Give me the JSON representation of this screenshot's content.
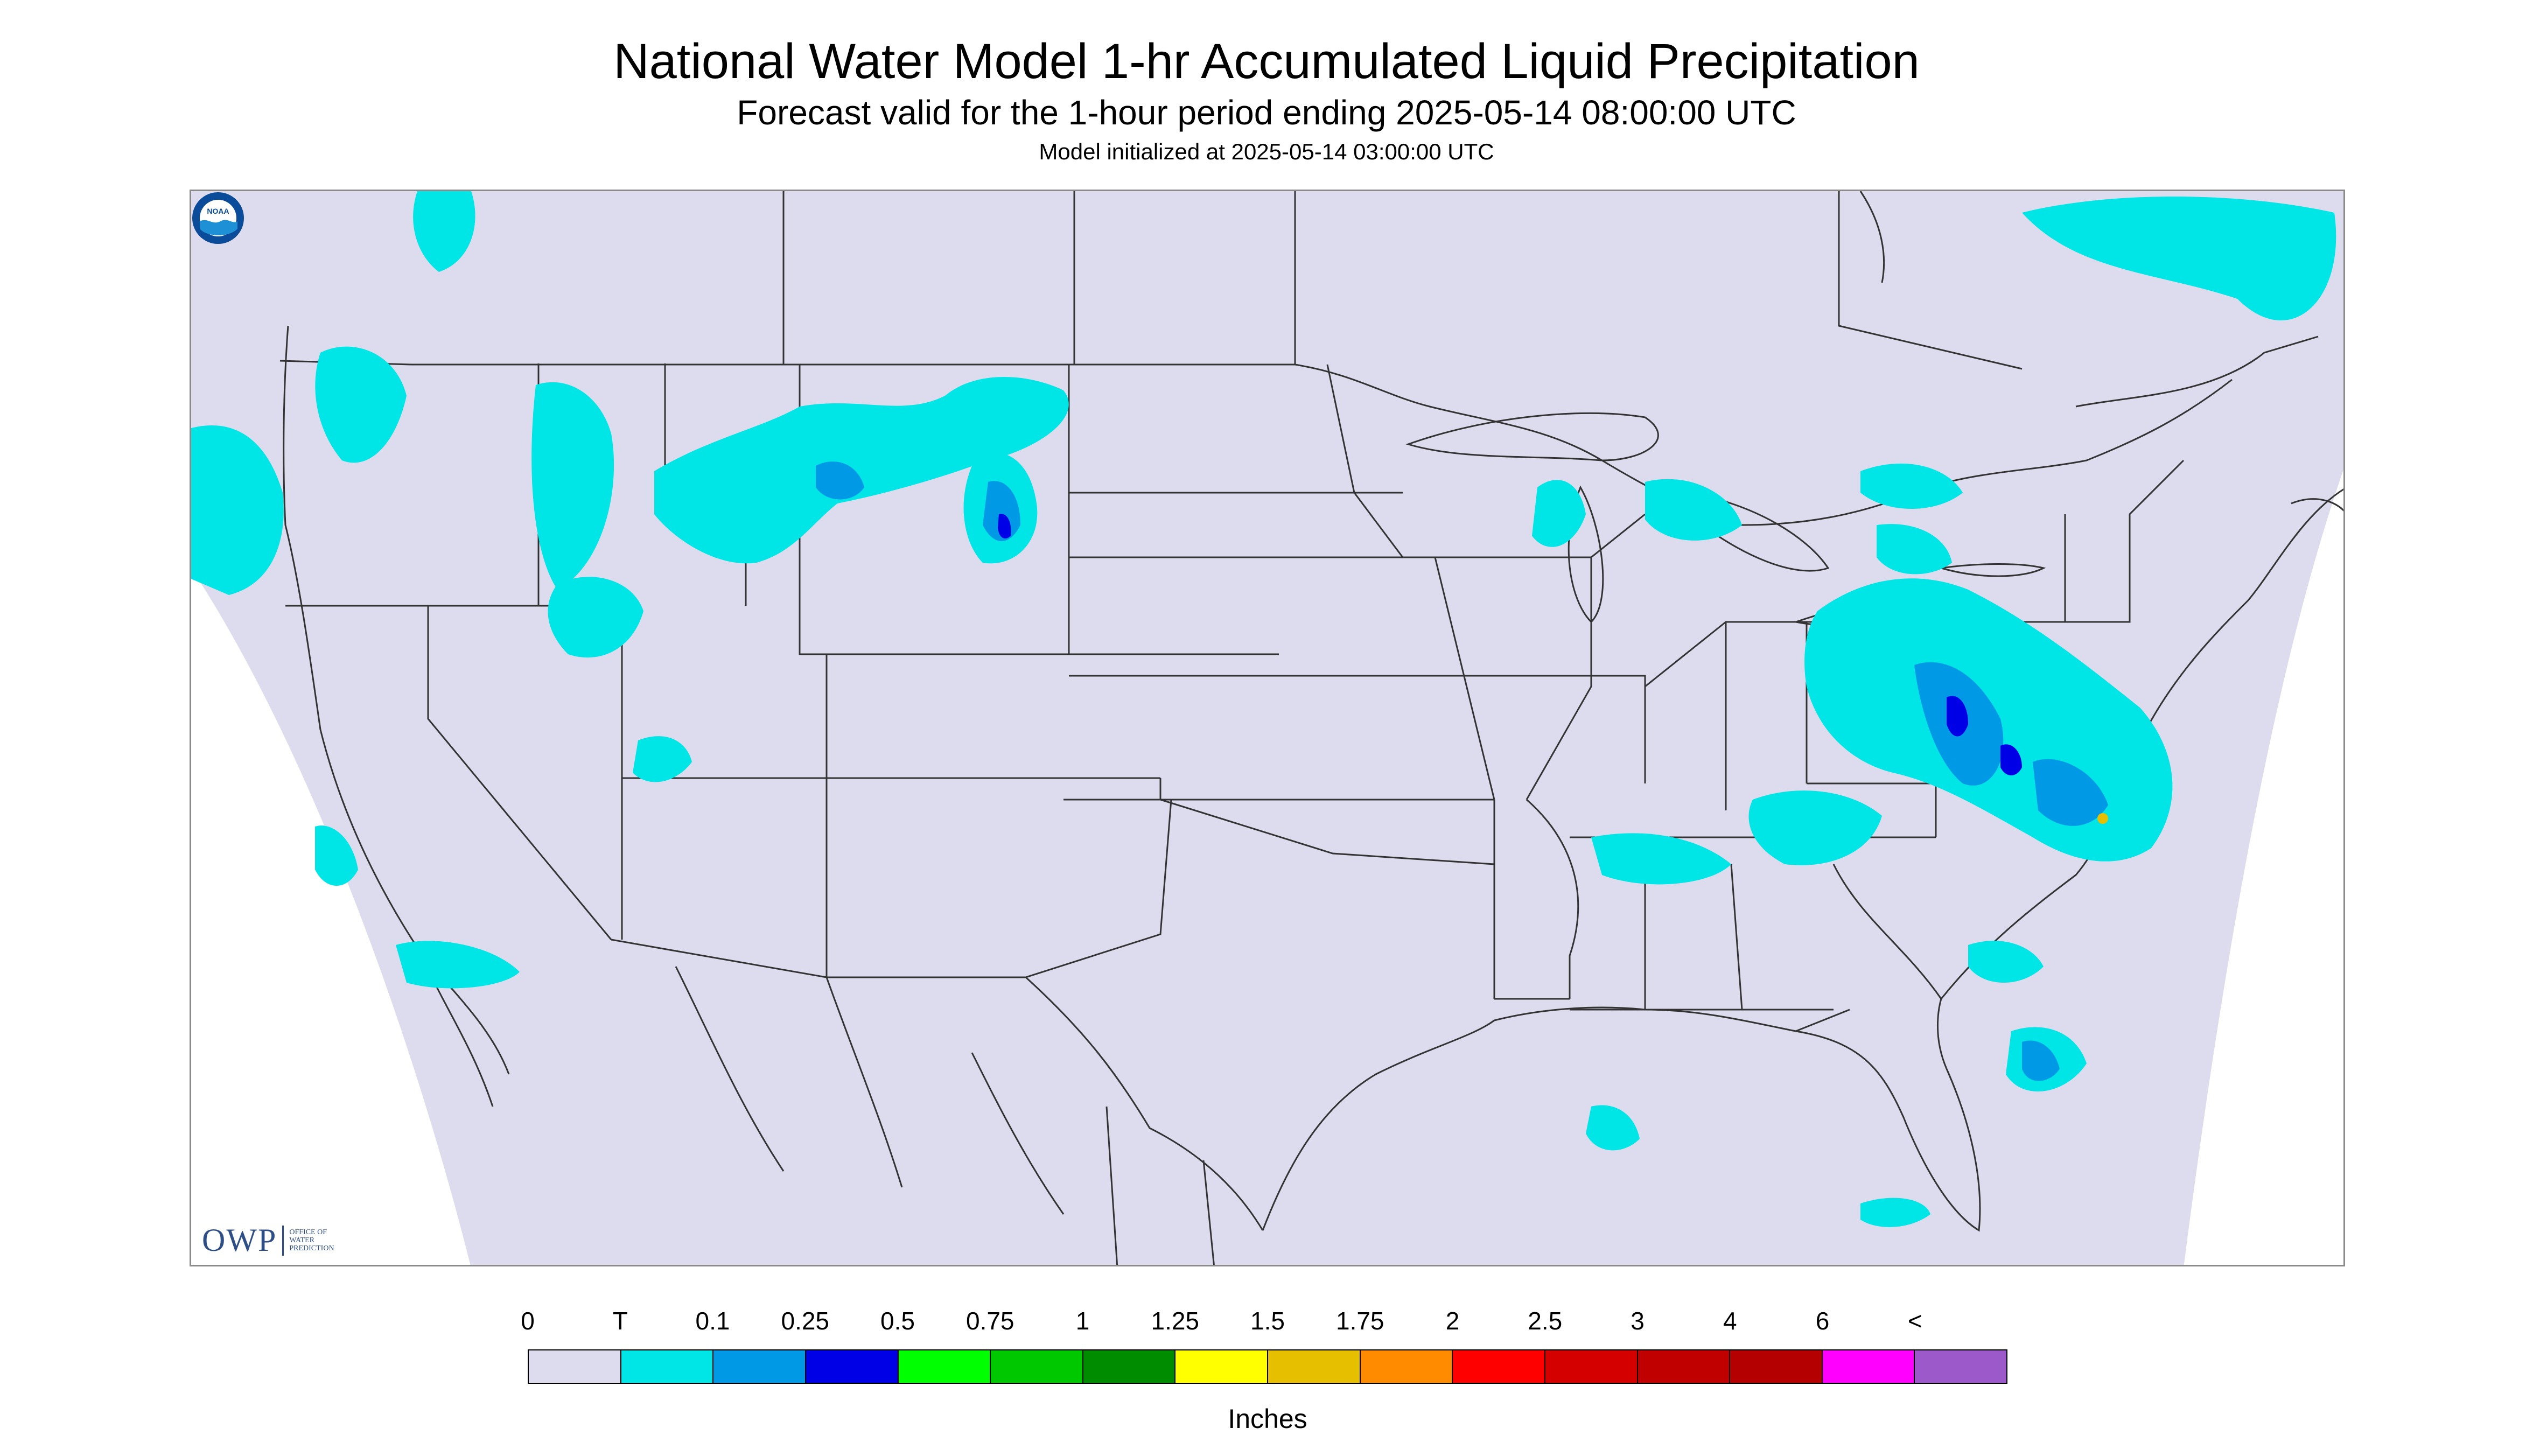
{
  "titles": {
    "main": "National Water Model 1-hr Accumulated Liquid Precipitation",
    "sub": "Forecast valid for the 1-hour period ending 2025-05-14 08:00:00 UTC",
    "init": "Model initialized at 2025-05-14 03:00:00 UTC"
  },
  "colors": {
    "domain_fill": "#dcdcee",
    "outside_fill": "#ffffff",
    "boundary_line": "#333333",
    "trace": "#00e5e5",
    "light_blue": "#0099e6",
    "blue": "#0000e6"
  },
  "logos": {
    "owp": {
      "mark": "OWP",
      "text_lines": [
        "OFFICE OF",
        "WATER",
        "PREDICTION"
      ]
    },
    "noaa": {
      "text": "NOAA",
      "icon": "noaa-seal-icon"
    }
  },
  "legend": {
    "labels": [
      "0",
      "T",
      "0.1",
      "0.25",
      "0.5",
      "0.75",
      "1",
      "1.25",
      "1.5",
      "1.75",
      "2",
      "2.5",
      "3",
      "4",
      "6",
      "<"
    ],
    "colors": [
      "#dcdcee",
      "#00e5e5",
      "#0099e6",
      "#0000e6",
      "#00ff00",
      "#00c800",
      "#008c00",
      "#ffff00",
      "#e6c000",
      "#ff8c00",
      "#ff0000",
      "#d40000",
      "#c00000",
      "#b40000",
      "#ff00ff",
      "#9b59c9"
    ],
    "unit": "Inches"
  },
  "map": {
    "projection": "conus-lambert",
    "region": "contiguous-united-states",
    "precip_areas": [
      {
        "region": "pacific-coast-offshore",
        "level": "T"
      },
      {
        "region": "pacific-northwest",
        "level": "T"
      },
      {
        "region": "northern-rockies",
        "level": "T"
      },
      {
        "region": "montana-wyoming",
        "level": "0.1"
      },
      {
        "region": "great-lakes",
        "level": "T"
      },
      {
        "region": "mid-atlantic",
        "level": "0.25"
      },
      {
        "region": "southern-appalachians",
        "level": "T"
      },
      {
        "region": "western-atlantic",
        "level": "0.1"
      },
      {
        "region": "eastern-canada",
        "level": "T"
      }
    ]
  }
}
